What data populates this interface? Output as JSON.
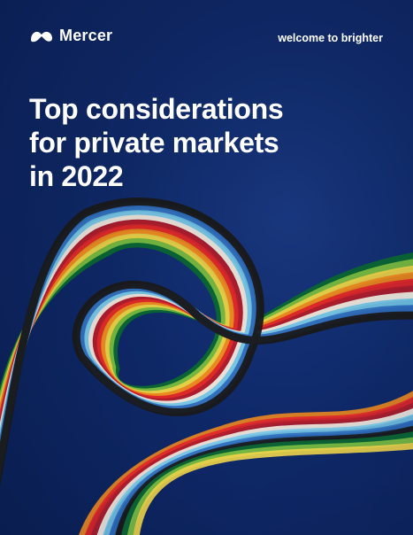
{
  "brand": {
    "name": "Mercer",
    "logo_icon": "mercer-logo-icon",
    "tagline": "welcome to brighter"
  },
  "cover": {
    "title_lines": [
      "Top considerations",
      "for private markets",
      "in 2022"
    ]
  },
  "colors": {
    "background": "#0d2764",
    "text": "#ffffff",
    "ribbon": [
      "#0b6b34",
      "#7ec242",
      "#f1d64a",
      "#f08a1f",
      "#e3262b",
      "#b01e2e",
      "#f4f1e6",
      "#74c7ea",
      "#2f6fc0",
      "#1a1a1a"
    ]
  }
}
